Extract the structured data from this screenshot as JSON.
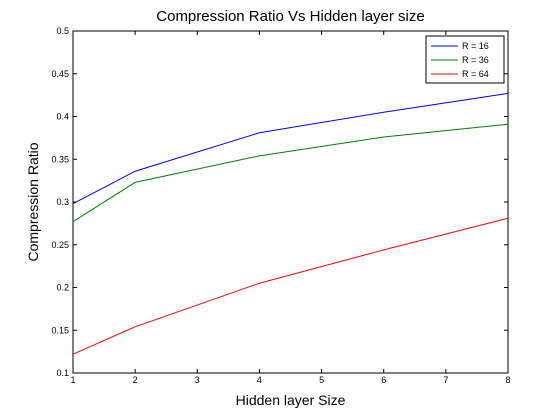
{
  "chart_data": {
    "type": "line",
    "title": "Compression Ratio Vs Hidden layer size",
    "xlabel": "Hidden layer Size",
    "ylabel": "Compression Ratio",
    "xlim": [
      1,
      8
    ],
    "ylim": [
      0.1,
      0.5
    ],
    "x_ticks": [
      "1",
      "2",
      "3",
      "4",
      "5",
      "6",
      "7",
      "8"
    ],
    "y_ticks": [
      "0.1",
      "0.15",
      "0.2",
      "0.25",
      "0.3",
      "0.35",
      "0.4",
      "0.45",
      "0.5"
    ],
    "x": [
      1,
      2,
      4,
      6,
      8
    ],
    "series": [
      {
        "name": "R = 16",
        "color": "#0000ff",
        "values": [
          0.298,
          0.336,
          0.381,
          0.405,
          0.427
        ]
      },
      {
        "name": "R = 36",
        "color": "#007f00",
        "values": [
          0.277,
          0.323,
          0.354,
          0.376,
          0.391
        ]
      },
      {
        "name": "R = 64",
        "color": "#ff0000",
        "values": [
          0.122,
          0.154,
          0.205,
          0.244,
          0.281
        ]
      }
    ],
    "legend_position": "top-right",
    "grid": false
  }
}
